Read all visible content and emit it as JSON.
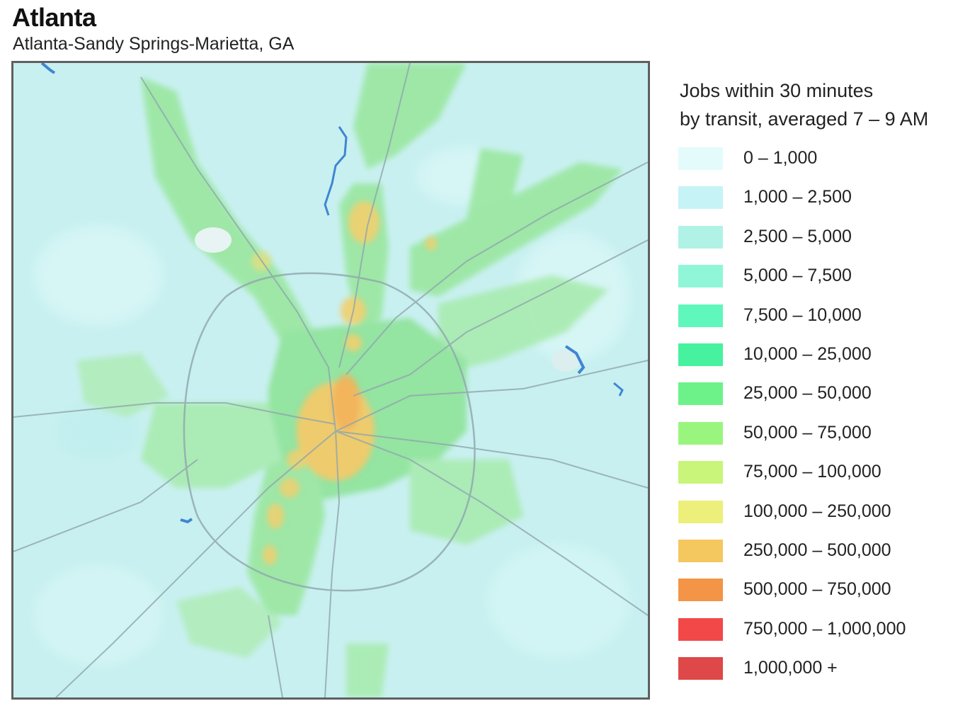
{
  "header": {
    "title": "Atlanta",
    "subtitle": "Atlanta-Sandy Springs-Marietta, GA"
  },
  "map": {
    "description_icon": "choropleth-map",
    "base_color": "#c8f0f0",
    "water_color": "#3f86d3",
    "road_color": "#8fa6ad"
  },
  "legend": {
    "title_line1": "Jobs within 30 minutes",
    "title_line2": "by transit, averaged 7 – 9 AM",
    "items": [
      {
        "label": "0 – 1,000",
        "color": "#e4fbfb"
      },
      {
        "label": "1,000 – 2,500",
        "color": "#c6f3f6"
      },
      {
        "label": "2,500 – 5,000",
        "color": "#b1f2e7"
      },
      {
        "label": "5,000 – 7,500",
        "color": "#8ff6d8"
      },
      {
        "label": "7,500 – 10,000",
        "color": "#5ff7bc"
      },
      {
        "label": "10,000 – 25,000",
        "color": "#46f29e"
      },
      {
        "label": "25,000 – 50,000",
        "color": "#6df28a"
      },
      {
        "label": "50,000 – 75,000",
        "color": "#9af57f"
      },
      {
        "label": "75,000 – 100,000",
        "color": "#c8f57a"
      },
      {
        "label": "100,000 – 250,000",
        "color": "#ecef7a"
      },
      {
        "label": "250,000 – 500,000",
        "color": "#f5c75f"
      },
      {
        "label": "500,000 – 750,000",
        "color": "#f39446"
      },
      {
        "label": "750,000 – 1,000,000",
        "color": "#f24848"
      },
      {
        "label": "1,000,000 +",
        "color": "#de4848"
      }
    ]
  }
}
